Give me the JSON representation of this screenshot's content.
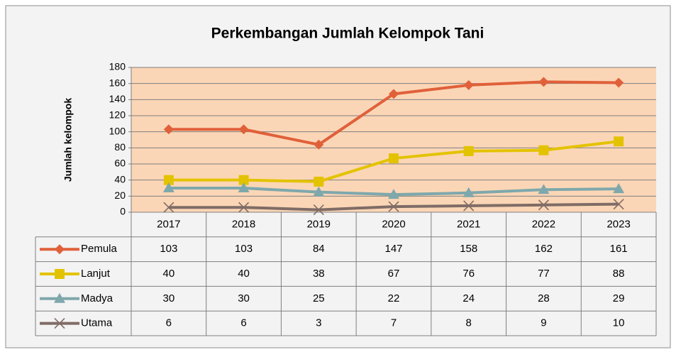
{
  "chart_data": {
    "type": "line",
    "title": "Perkembangan Jumlah Kelompok Tani",
    "y_label": "Jumlah kelompok",
    "categories": [
      "2017",
      "2018",
      "2019",
      "2020",
      "2021",
      "2022",
      "2023"
    ],
    "series": [
      {
        "name": "Pemula",
        "color": "#e0603a",
        "marker": "diamond",
        "values": [
          103,
          103,
          84,
          147,
          158,
          162,
          161
        ]
      },
      {
        "name": "Lanjut",
        "color": "#e3c300",
        "marker": "square",
        "values": [
          40,
          40,
          38,
          67,
          76,
          77,
          88
        ]
      },
      {
        "name": "Madya",
        "color": "#7ea8ac",
        "marker": "triangle",
        "values": [
          30,
          30,
          25,
          22,
          24,
          28,
          29
        ]
      },
      {
        "name": "Utama",
        "color": "#7f6c66",
        "marker": "x",
        "values": [
          6,
          6,
          3,
          7,
          8,
          9,
          10
        ]
      }
    ],
    "ylim": [
      0,
      180
    ],
    "yticks": [
      0,
      20,
      40,
      60,
      80,
      100,
      120,
      140,
      160,
      180
    ],
    "grid": true,
    "data_table": true
  }
}
